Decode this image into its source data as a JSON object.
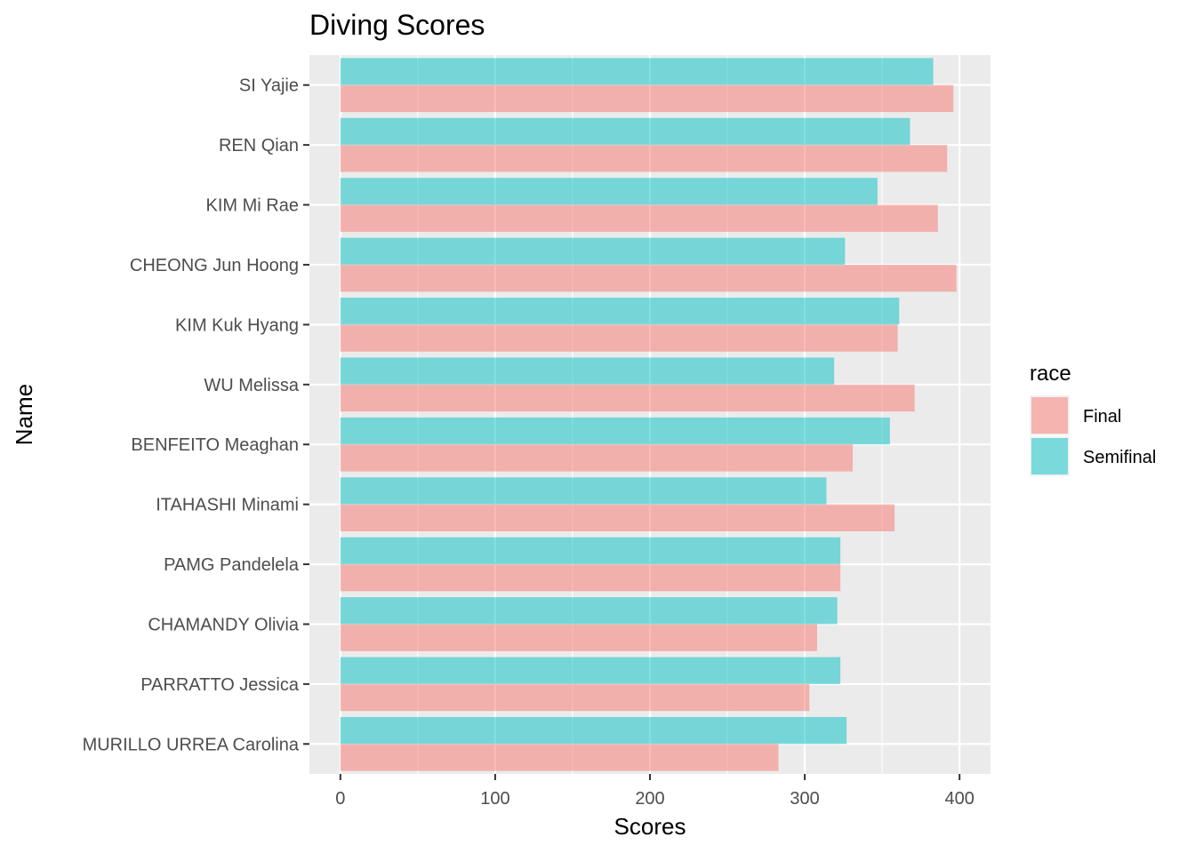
{
  "chart_data": {
    "type": "bar",
    "orientation": "horizontal",
    "title": "Diving Scores",
    "xlabel": "Scores",
    "ylabel": "Name",
    "xlim": [
      -20,
      420
    ],
    "xticks": [
      0,
      100,
      200,
      300,
      400
    ],
    "grid": true,
    "legend": {
      "title": "race",
      "position": "right"
    },
    "categories": [
      "SI Yajie",
      "REN Qian",
      "KIM Mi Rae",
      "CHEONG Jun Hoong",
      "KIM Kuk Hyang",
      "WU Melissa",
      "BENFEITO Meaghan",
      "ITAHASHI Minami",
      "PAMG Pandelela",
      "CHAMANDY Olivia",
      "PARRATTO Jessica",
      "MURILLO URREA Carolina"
    ],
    "series": [
      {
        "name": "Final",
        "color": "#F8766D",
        "values": [
          396,
          392,
          386,
          398,
          360,
          371,
          331,
          358,
          323,
          308,
          303,
          283
        ]
      },
      {
        "name": "Semifinal",
        "color": "#00BFC4",
        "values": [
          383,
          368,
          347,
          326,
          361,
          319,
          355,
          314,
          323,
          321,
          323,
          327
        ]
      }
    ],
    "bar_opacity": 0.5
  }
}
